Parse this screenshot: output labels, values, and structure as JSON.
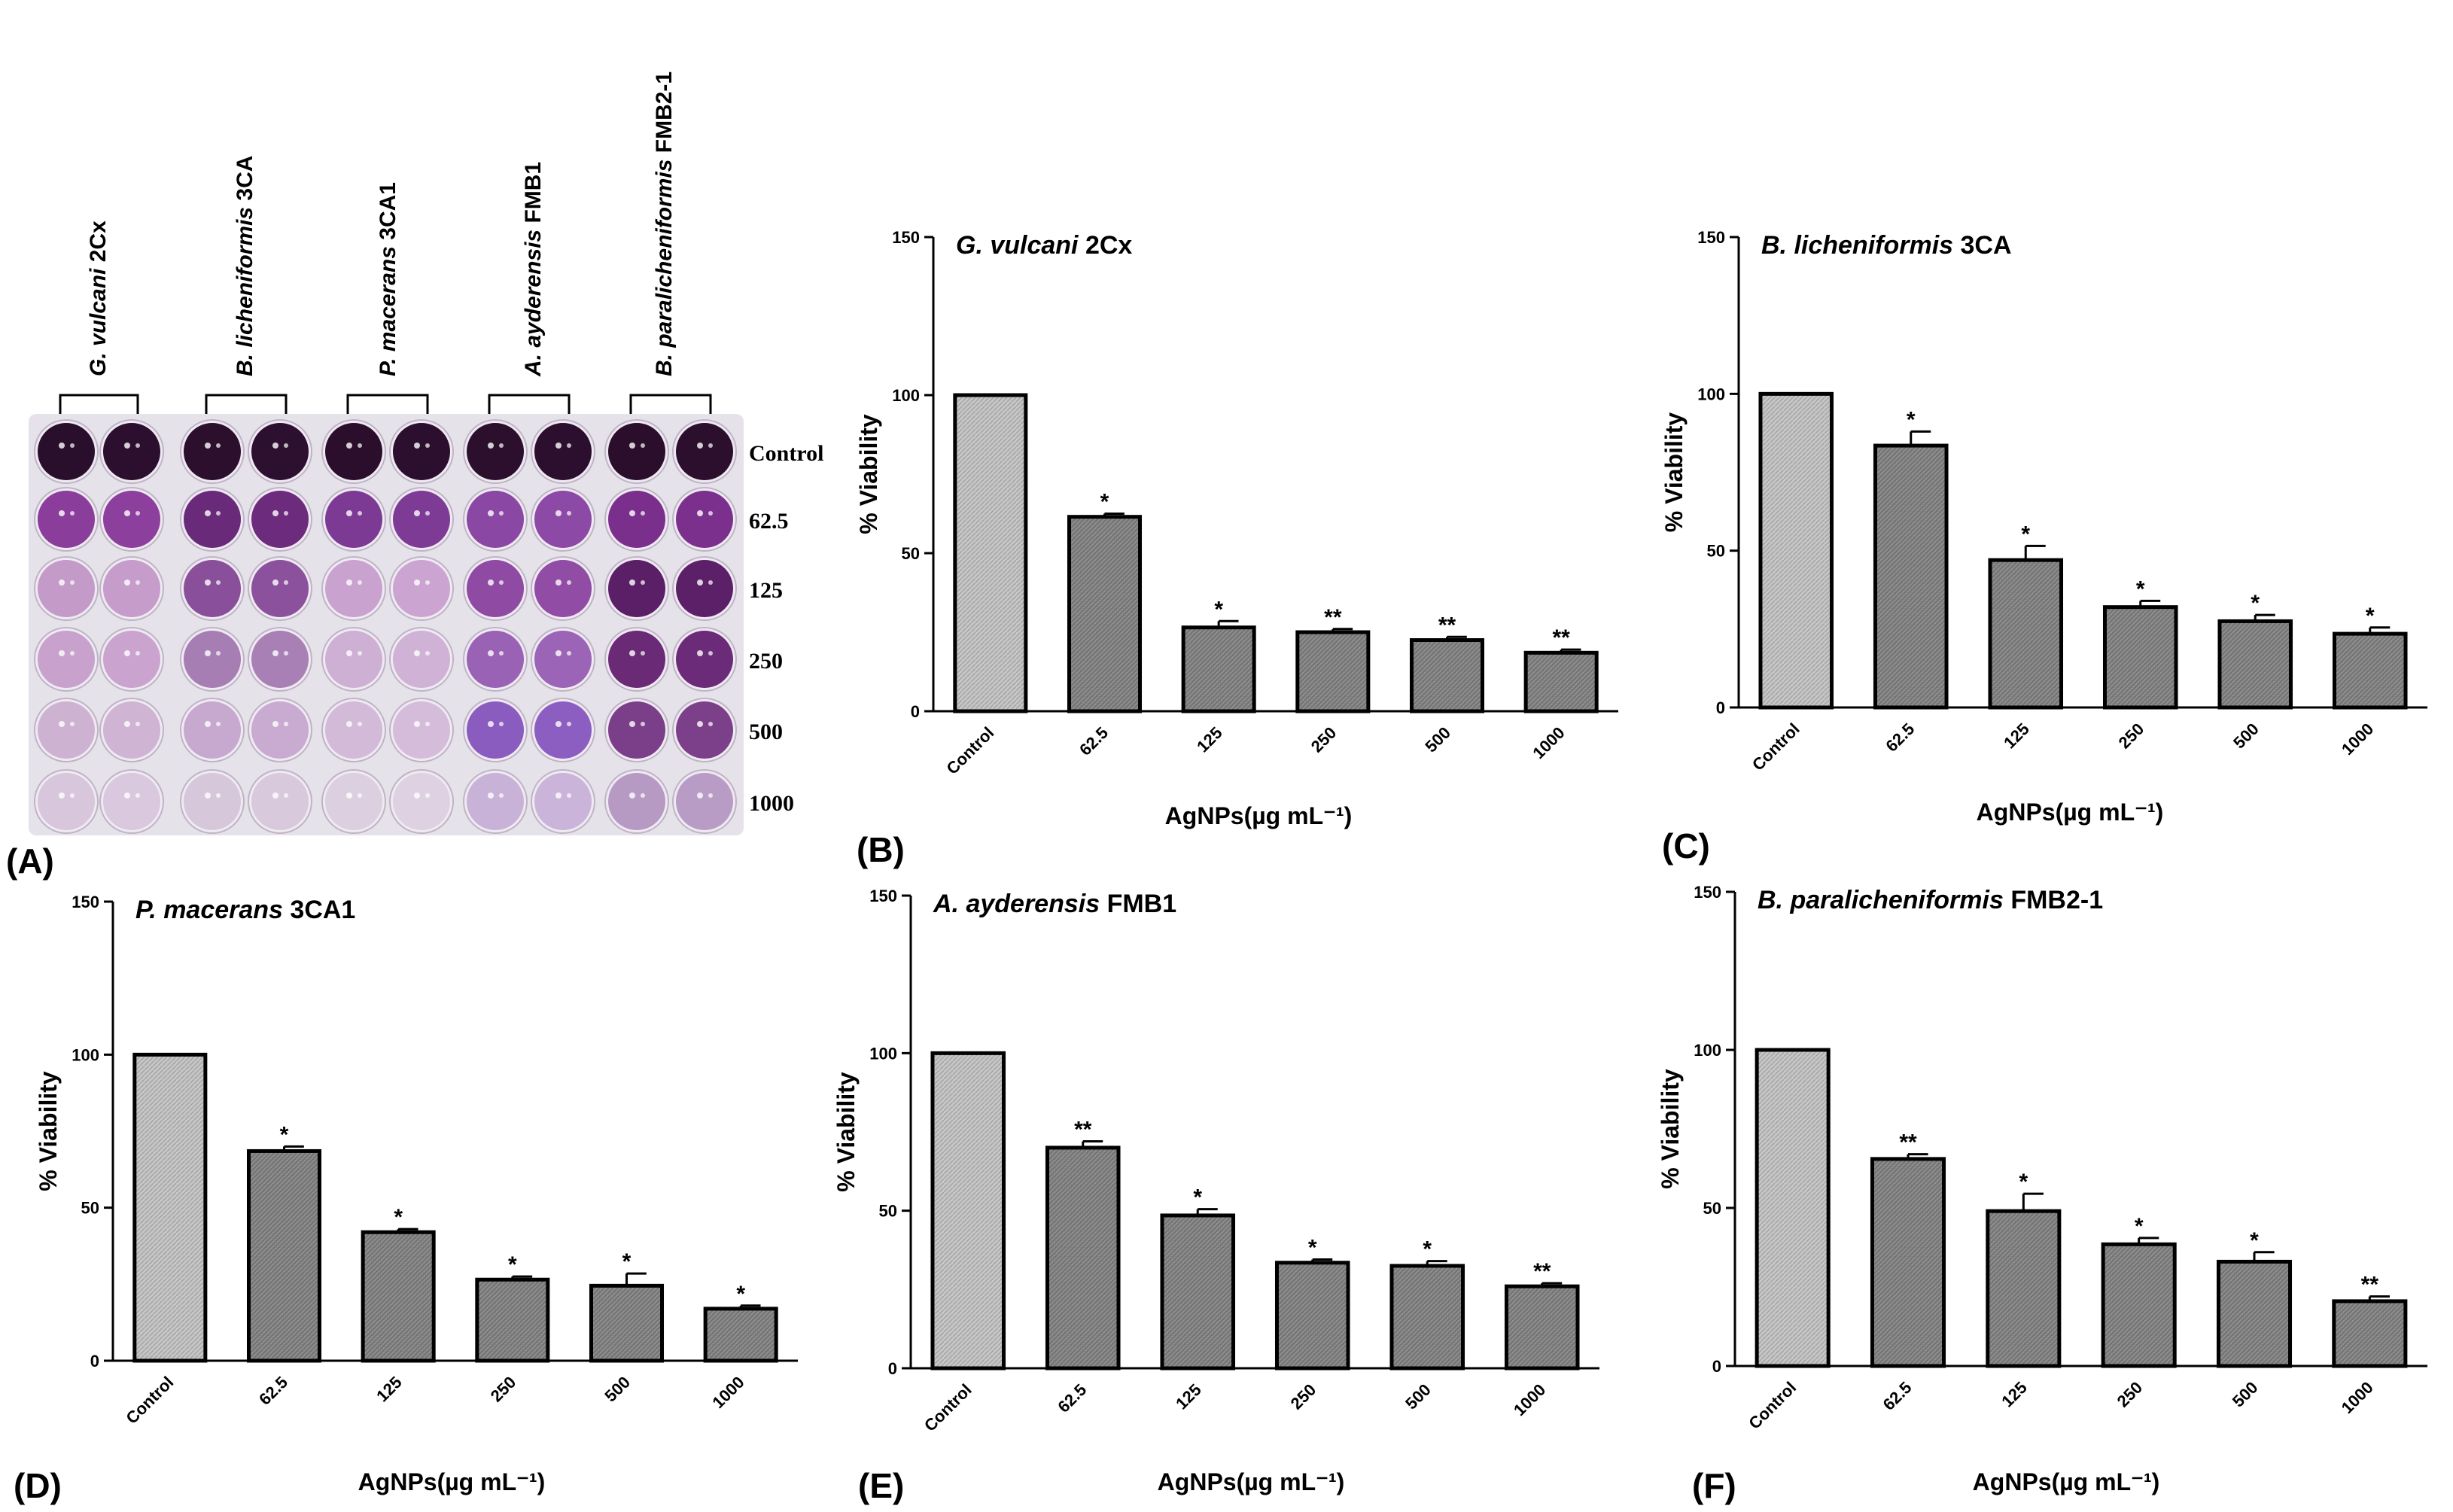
{
  "figure": {
    "panel_a": {
      "letter": "(A)",
      "strains": [
        {
          "italic": "G. vulcani",
          "plain": " 2Cx"
        },
        {
          "italic": "B. licheniformis",
          "plain": " 3CA"
        },
        {
          "italic": "P. macerans",
          "plain": " 3CA1"
        },
        {
          "italic": "A. ayderensis",
          "plain": " FMB1"
        },
        {
          "italic": "B. paralicheniformis",
          "plain": " FMB2-1"
        }
      ],
      "concentrations": [
        "Control",
        "62.5",
        "125",
        "250",
        "500",
        "1000"
      ],
      "well_colors": [
        [
          "#2a0f2c",
          "#2c0f2e",
          "#2b0f2c",
          "#2d0f2f",
          "#2a0e2c",
          "#2c0f2e",
          "#2b0f2d",
          "#2c0f2e",
          "#2a0e2c",
          "#2b0f2d"
        ],
        [
          "#8a3d9a",
          "#8c3f9c",
          "#6a2a7a",
          "#6c2b7c",
          "#7c3a94",
          "#7e3b96",
          "#8a48a4",
          "#8c49a6",
          "#7a2f8c",
          "#7c308e"
        ],
        [
          "#c39ac8",
          "#c59cca",
          "#8a4f9a",
          "#8c519c",
          "#c9a2cf",
          "#cba4d1",
          "#8f4aa4",
          "#914ca6",
          "#5a1f66",
          "#5c2068"
        ],
        [
          "#c8a2cd",
          "#caa4cf",
          "#a77eb4",
          "#a980b6",
          "#cdb0d4",
          "#cfb2d6",
          "#9a62b4",
          "#9c64b6",
          "#6a2a76",
          "#6c2b78"
        ],
        [
          "#cdb2d2",
          "#cfb4d4",
          "#c7a9cf",
          "#c9abd1",
          "#d2bad8",
          "#d4bcda",
          "#8a5cc0",
          "#8c5ec2",
          "#7a3f88",
          "#7c408a"
        ],
        [
          "#d8c6dc",
          "#dac8de",
          "#d6c8da",
          "#d8cadc",
          "#dcd0e0",
          "#ded2e2",
          "#c9b2d8",
          "#cbb4da",
          "#b79ac4",
          "#b99cc6"
        ]
      ]
    },
    "panels": [
      {
        "letter": "(B)",
        "chart_data": {
          "type": "bar",
          "title_italic": "G. vulcani",
          "title_plain": " 2Cx",
          "categories": [
            "Control",
            "62.5",
            "125",
            "250",
            "500",
            "1000"
          ],
          "values": [
            100,
            61.5,
            26.5,
            25,
            22.5,
            18.5
          ],
          "errors": [
            0,
            1,
            2,
            1,
            1,
            1
          ],
          "significance": [
            "",
            "*",
            "*",
            "**",
            "**",
            "**"
          ],
          "ylabel": "% Viability",
          "xlabel": "AgNPs(µg mL⁻¹)",
          "ylim": [
            0,
            150
          ],
          "yticks": [
            "0",
            "50",
            "100",
            "150"
          ]
        }
      },
      {
        "letter": "(C)",
        "chart_data": {
          "type": "bar",
          "title_italic": "B. licheniformis",
          "title_plain": " 3CA",
          "categories": [
            "Control",
            "62.5",
            "125",
            "250",
            "500",
            "1000"
          ],
          "values": [
            100,
            83.5,
            47,
            32,
            27.5,
            23.5
          ],
          "errors": [
            0,
            4.5,
            4.5,
            2,
            2,
            2
          ],
          "significance": [
            "",
            "*",
            "*",
            "*",
            "*",
            "*"
          ],
          "ylabel": "% Viability",
          "xlabel": "AgNPs(µg mL⁻¹)",
          "ylim": [
            0,
            150
          ],
          "yticks": [
            "0",
            "50",
            "100",
            "150"
          ]
        }
      },
      {
        "letter": "(D)",
        "chart_data": {
          "type": "bar",
          "title_italic": "P. macerans",
          "title_plain": " 3CA1",
          "categories": [
            "Control",
            "62.5",
            "125",
            "250",
            "500",
            "1000"
          ],
          "values": [
            100,
            68.5,
            42,
            26.5,
            24.5,
            17
          ],
          "errors": [
            0,
            1.5,
            1,
            1,
            4,
            1
          ],
          "significance": [
            "",
            "*",
            "*",
            "*",
            "*",
            "*"
          ],
          "ylabel": "% Viability",
          "xlabel": "AgNPs(µg mL⁻¹)",
          "ylim": [
            0,
            150
          ],
          "yticks": [
            "0",
            "50",
            "100",
            "150"
          ]
        }
      },
      {
        "letter": "(E)",
        "chart_data": {
          "type": "bar",
          "title_italic": "A. ayderensis",
          "title_plain": " FMB1",
          "categories": [
            "Control",
            "62.5",
            "125",
            "250",
            "500",
            "1000"
          ],
          "values": [
            100,
            70,
            48.5,
            33.5,
            32.5,
            26
          ],
          "errors": [
            0,
            2,
            2,
            1,
            1.5,
            1
          ],
          "significance": [
            "",
            "**",
            "*",
            "*",
            "*",
            "**"
          ],
          "ylabel": "% Viability",
          "xlabel": "AgNPs(µg mL⁻¹)",
          "ylim": [
            0,
            150
          ],
          "yticks": [
            "0",
            "50",
            "100",
            "150"
          ]
        }
      },
      {
        "letter": "(F)",
        "chart_data": {
          "type": "bar",
          "title_italic": "B. paralicheniformis",
          "title_plain": " FMB2-1",
          "categories": [
            "Control",
            "62.5",
            "125",
            "250",
            "500",
            "1000"
          ],
          "values": [
            100,
            65.5,
            49,
            38.5,
            33,
            20.5
          ],
          "errors": [
            0,
            1.5,
            5.5,
            2,
            3,
            1.5
          ],
          "significance": [
            "",
            "**",
            "*",
            "*",
            "*",
            "**"
          ],
          "ylabel": "% Viability",
          "xlabel": "AgNPs(µg mL⁻¹)",
          "ylim": [
            0,
            150
          ],
          "yticks": [
            "0",
            "50",
            "100",
            "150"
          ]
        }
      }
    ]
  }
}
